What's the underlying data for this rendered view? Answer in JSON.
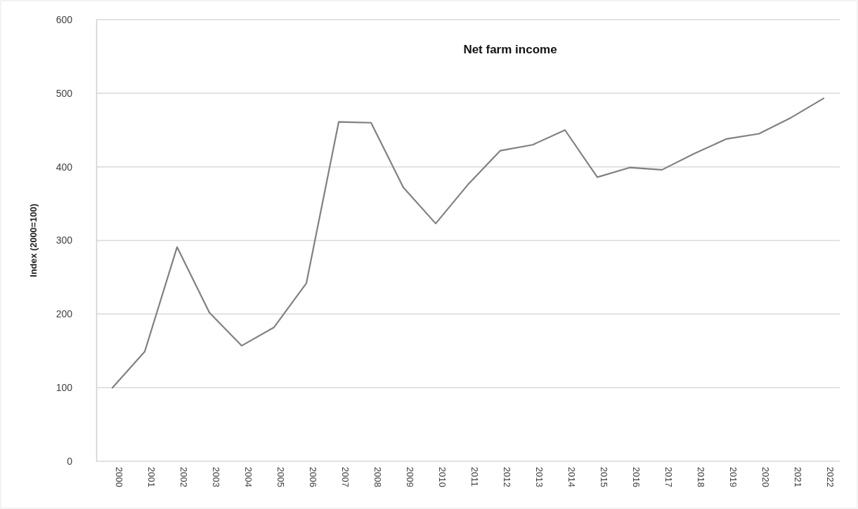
{
  "chart_data": {
    "type": "line",
    "title": "Net farm income",
    "ylabel": "Index (2000=100)",
    "categories": [
      "2000",
      "2001",
      "2002",
      "2003",
      "2004",
      "2005",
      "2006",
      "2007",
      "2008",
      "2009",
      "2010",
      "2011",
      "2012",
      "2013",
      "2014",
      "2015",
      "2016",
      "2017",
      "2018",
      "2019",
      "2020",
      "2021",
      "2022"
    ],
    "series": [
      {
        "color": "#808080",
        "values": [
          100,
          149,
          291,
          202,
          157,
          182,
          242,
          461,
          460,
          372,
          323,
          376,
          422,
          430,
          450,
          386,
          399,
          396,
          418,
          438,
          445,
          467,
          493
        ]
      }
    ],
    "ylim": [
      0,
      600
    ],
    "yticks": [
      0,
      100,
      200,
      300,
      400,
      500,
      600
    ],
    "grid": "y",
    "marker": "none",
    "line_style": "solid"
  }
}
